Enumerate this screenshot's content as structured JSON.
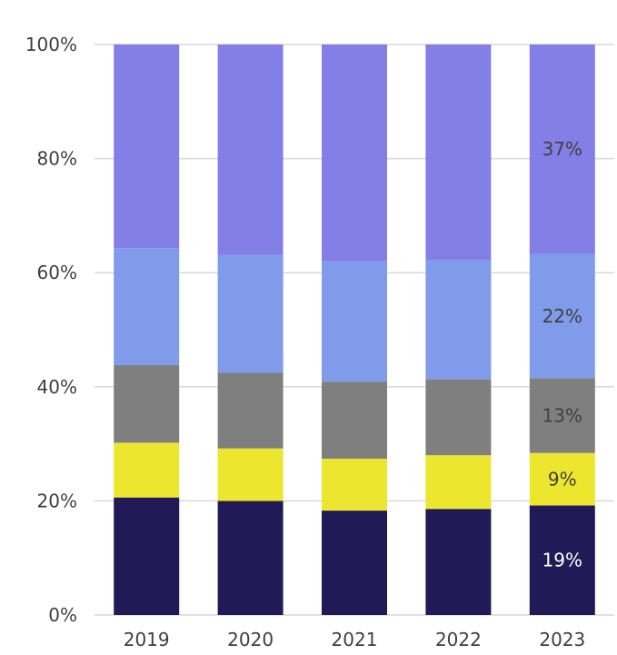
{
  "chart_data": {
    "type": "bar",
    "stacked": true,
    "categories": [
      "2019",
      "2020",
      "2021",
      "2022",
      "2023"
    ],
    "ylim": [
      0,
      100
    ],
    "yticks": [
      "0%",
      "20%",
      "40%",
      "60%",
      "80%",
      "100%"
    ],
    "grid": true,
    "series": [
      {
        "color": "#221a56",
        "label_color": "#ffffff",
        "values": [
          20.6,
          20.0,
          18.3,
          18.6,
          19.2
        ]
      },
      {
        "color": "#ede62e",
        "label_color": "#404040",
        "values": [
          9.6,
          9.2,
          9.1,
          9.4,
          9.2
        ]
      },
      {
        "color": "#7f7f7f",
        "label_color": "#404040",
        "values": [
          13.6,
          13.3,
          13.5,
          13.3,
          13.1
        ]
      },
      {
        "color": "#7f9be9",
        "label_color": "#404040",
        "values": [
          20.5,
          20.6,
          21.1,
          20.9,
          21.8
        ]
      },
      {
        "color": "#837fe6",
        "label_color": "#404040",
        "values": [
          35.7,
          36.9,
          38.0,
          37.8,
          36.7
        ]
      }
    ],
    "data_labels": [
      {
        "category": "2023",
        "series": 0,
        "text": "19%"
      },
      {
        "category": "2023",
        "series": 1,
        "text": "9%"
      },
      {
        "category": "2023",
        "series": 2,
        "text": "13%"
      },
      {
        "category": "2023",
        "series": 3,
        "text": "22%"
      },
      {
        "category": "2023",
        "series": 4,
        "text": "37%"
      }
    ]
  }
}
